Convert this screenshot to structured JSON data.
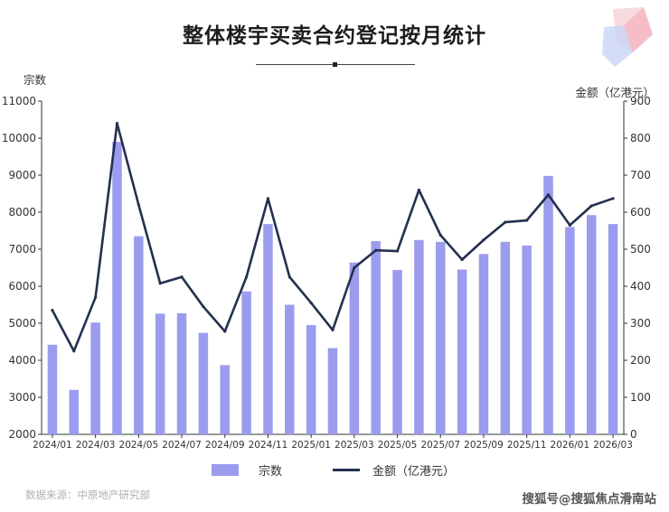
{
  "chart_data": {
    "type": "bar",
    "title": "整体楼宇买卖合约登记按月统计",
    "y_left_label": "宗数",
    "y_right_label": "金额（亿港元）",
    "y_left_lim": [
      2000,
      11000
    ],
    "y_right_lim": [
      0,
      900
    ],
    "y_left_ticks": [
      "2000",
      "3000",
      "4000",
      "5000",
      "6000",
      "7000",
      "8000",
      "9000",
      "10000",
      "11000"
    ],
    "y_right_ticks": [
      "0",
      "100",
      "200",
      "300",
      "400",
      "500",
      "600",
      "700",
      "800",
      "900"
    ],
    "categories": [
      "2024/01",
      "2024/02",
      "2024/03",
      "2024/04",
      "2024/05",
      "2024/06",
      "2024/07",
      "2024/08",
      "2024/09",
      "2024/10",
      "2024/11",
      "2024/12",
      "2025/01",
      "2025/02",
      "2025/03",
      "2025/04",
      "2025/05",
      "2025/06",
      "2025/07",
      "2025/08",
      "2025/09",
      "2025/10",
      "2025/11",
      "2025/12",
      "2026/01",
      "2026/02",
      "2026/03"
    ],
    "x_tick_labels": [
      "2024/01",
      "2024/03",
      "2024/05",
      "2024/07",
      "2024/09",
      "2024/11",
      "2025/01",
      "2025/03",
      "2025/05",
      "2025/07",
      "2025/09",
      "2025/11",
      "2026/01",
      "2026/03"
    ],
    "series": [
      {
        "name": "宗数",
        "axis": "left",
        "kind": "bar",
        "color": "#9b9cee",
        "values": [
          4420,
          3200,
          5020,
          9900,
          7350,
          5260,
          5270,
          4740,
          3870,
          5860,
          7680,
          5500,
          4950,
          4330,
          6640,
          7220,
          6440,
          7250,
          7200,
          6450,
          6870,
          7200,
          7100,
          8980,
          7600,
          7920,
          7680
        ]
      },
      {
        "name": "金额（亿港元）",
        "axis": "right",
        "kind": "line",
        "color": "#23304f",
        "values": [
          335,
          225,
          370,
          840,
          620,
          408,
          425,
          345,
          278,
          425,
          637,
          425,
          355,
          282,
          450,
          497,
          495,
          660,
          538,
          472,
          525,
          573,
          578,
          647,
          565,
          617,
          637
        ]
      }
    ],
    "grid": false,
    "legend_position": "bottom"
  },
  "footer": {
    "source": "数据来源：中原地产研究部",
    "watermark": "搜狐号@搜狐焦点滑南站"
  }
}
